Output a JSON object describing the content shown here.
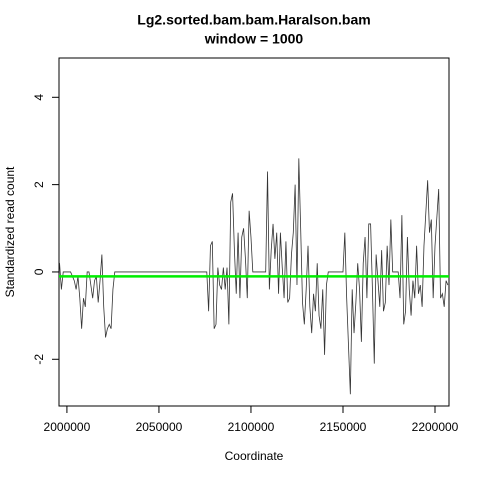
{
  "chart_data": {
    "type": "line",
    "title": "Lg2.sorted.bam.bam.Haralson.bam",
    "subtitle": "window = 1000",
    "x_label": "Coordinate",
    "y_label": "Standardized read count",
    "xlim": [
      1995700,
      2207600
    ],
    "ylim": [
      -3.07,
      4.9
    ],
    "xticks": [
      2000000,
      2050000,
      2100000,
      2150000,
      2200000
    ],
    "yticks": [
      -2,
      0,
      2,
      4
    ],
    "x": [
      1995700,
      1996000,
      1997000,
      1998000,
      2000000,
      2002000,
      2004000,
      2005000,
      2006000,
      2007000,
      2008000,
      2009000,
      2010000,
      2011000,
      2012000,
      2013000,
      2014000,
      2015000,
      2016000,
      2017000,
      2018000,
      2019000,
      2020000,
      2021000,
      2022000,
      2023000,
      2024000,
      2025000,
      2026000,
      2076000,
      2077000,
      2078000,
      2079000,
      2080000,
      2081000,
      2082000,
      2083000,
      2084000,
      2085000,
      2086000,
      2087000,
      2088000,
      2089000,
      2090000,
      2091000,
      2092000,
      2093000,
      2094000,
      2095000,
      2096000,
      2097000,
      2098000,
      2099000,
      2100000,
      2101000,
      2108000,
      2109000,
      2110000,
      2111000,
      2112000,
      2113000,
      2114000,
      2115000,
      2116000,
      2117000,
      2118000,
      2119000,
      2120000,
      2121000,
      2122000,
      2123000,
      2124000,
      2125000,
      2126000,
      2127000,
      2128000,
      2129000,
      2130000,
      2131000,
      2132000,
      2133000,
      2134000,
      2135000,
      2136000,
      2137000,
      2138000,
      2139000,
      2140000,
      2141000,
      2142000,
      2150000,
      2151000,
      2152000,
      2154000,
      2155000,
      2156000,
      2157000,
      2158000,
      2159000,
      2160000,
      2161000,
      2162000,
      2163000,
      2164000,
      2165000,
      2166000,
      2167000,
      2168000,
      2169000,
      2170000,
      2171000,
      2172000,
      2173000,
      2174000,
      2175000,
      2176000,
      2177000,
      2180000,
      2181000,
      2182000,
      2183000,
      2184000,
      2185000,
      2186000,
      2187000,
      2188000,
      2189000,
      2190000,
      2191000,
      2192000,
      2193000,
      2194000,
      2196000,
      2197000,
      2198000,
      2199000,
      2200000,
      2202000,
      2203000,
      2204000,
      2205000,
      2206000,
      2207000
    ],
    "series": [
      {
        "color": "#333333",
        "values": [
          0.2,
          0.2,
          -0.4,
          0,
          0,
          0,
          -0.2,
          -0.4,
          -0.1,
          -0.6,
          -1.3,
          -0.6,
          -0.8,
          0,
          0,
          -0.3,
          -0.6,
          -0.2,
          -0.1,
          -0.7,
          -0.2,
          0.4,
          -0.8,
          -1.5,
          -1.3,
          -1.2,
          -1.3,
          -0.4,
          0,
          0,
          -0.9,
          0.6,
          0.7,
          -1.3,
          -1.2,
          0.1,
          -0.3,
          -0.4,
          0.1,
          -0.4,
          0.1,
          -1.2,
          1.6,
          1.8,
          0.5,
          -0.5,
          0.9,
          -0.6,
          0.8,
          1.0,
          0.3,
          -0.6,
          1.4,
          0.8,
          0,
          0,
          2.3,
          -0.4,
          0.5,
          1.1,
          0.3,
          0.9,
          -0.5,
          0.9,
          0.1,
          -0.6,
          0.7,
          -0.7,
          -0.6,
          0.4,
          0.9,
          2.0,
          -0.3,
          2.6,
          1.0,
          -0.7,
          -1.2,
          -0.4,
          0.6,
          -0.8,
          -1.4,
          -0.5,
          -0.9,
          0.2,
          -1.0,
          -1.3,
          -0.4,
          -1.9,
          -0.3,
          0,
          0,
          0.9,
          -0.6,
          -2.8,
          -0.4,
          -1.4,
          -0.7,
          0.2,
          -0.4,
          -1.6,
          0.2,
          0.8,
          -0.6,
          1.1,
          1.1,
          -0.4,
          -2.1,
          0.4,
          -0.2,
          -0.8,
          0.5,
          -0.9,
          -0.7,
          0.6,
          -0.3,
          1.2,
          0,
          0,
          -0.6,
          1.3,
          -1.2,
          -0.9,
          0.8,
          -0.4,
          -1.0,
          -0.2,
          -0.6,
          0.6,
          -0.5,
          -0.3,
          -0.8,
          0.6,
          2.1,
          0.9,
          1.2,
          -0.6,
          0.6,
          1.9,
          -0.6,
          -0.5,
          -0.8,
          -0.2,
          -0.3
        ]
      }
    ],
    "reference_line": {
      "value": -0.1,
      "color": "#00ee00"
    }
  }
}
